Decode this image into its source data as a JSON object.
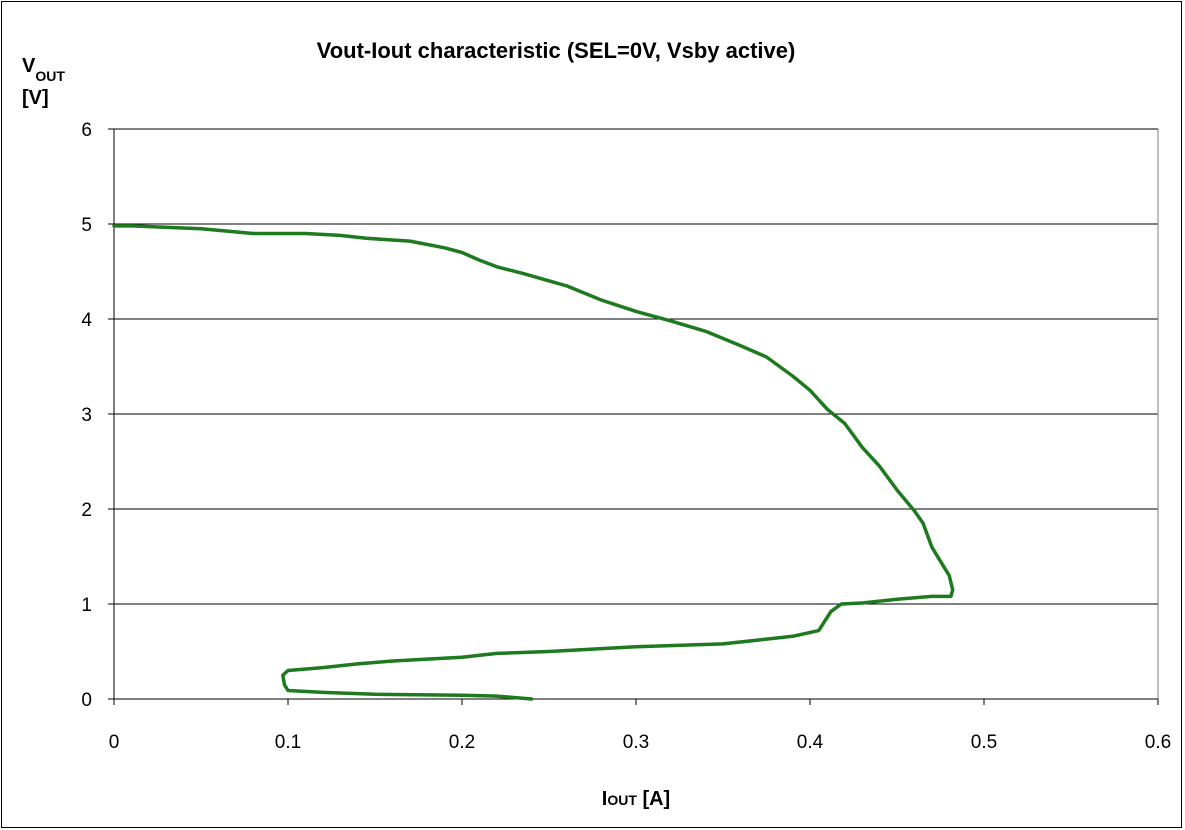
{
  "chart_data": {
    "type": "line",
    "title": "Vout-Iout characteristic (SEL=0V, Vsby active)",
    "ylabel": {
      "main": "V",
      "sub": "OUT",
      "unit": "[V]"
    },
    "xlabel": {
      "main": "I",
      "sub": "OUT",
      "unit": " [A]"
    },
    "xlim": [
      0,
      0.6
    ],
    "ylim": [
      0,
      6
    ],
    "xticks": [
      "0",
      "0.1",
      "0.2",
      "0.3",
      "0.4",
      "0.5",
      "0.6"
    ],
    "yticks": [
      "0",
      "1",
      "2",
      "3",
      "4",
      "5",
      "6"
    ],
    "grid": "horizontal",
    "legend": "none",
    "line_color": "#1e7a1e",
    "series": [
      {
        "x": [
          0,
          0.01,
          0.05,
          0.08,
          0.11,
          0.13,
          0.145,
          0.17,
          0.19,
          0.2,
          0.21,
          0.22,
          0.235,
          0.26,
          0.28,
          0.3,
          0.32,
          0.34,
          0.36,
          0.375,
          0.39,
          0.4,
          0.41,
          0.42,
          0.43,
          0.44,
          0.45,
          0.46,
          0.465,
          0.47,
          0.475,
          0.48,
          0.482,
          0.481,
          0.47,
          0.45,
          0.43,
          0.418,
          0.412,
          0.405,
          0.39,
          0.37,
          0.35,
          0.3,
          0.25,
          0.22,
          0.2,
          0.18,
          0.16,
          0.14,
          0.12,
          0.1,
          0.097,
          0.098,
          0.1,
          0.12,
          0.15,
          0.2,
          0.22,
          0.24
        ],
        "y": [
          4.98,
          4.98,
          4.95,
          4.9,
          4.9,
          4.88,
          4.85,
          4.82,
          4.75,
          4.7,
          4.62,
          4.55,
          4.48,
          4.35,
          4.2,
          4.08,
          3.98,
          3.87,
          3.72,
          3.6,
          3.4,
          3.25,
          3.05,
          2.9,
          2.65,
          2.45,
          2.2,
          1.98,
          1.85,
          1.6,
          1.45,
          1.3,
          1.15,
          1.08,
          1.08,
          1.05,
          1.01,
          1.0,
          0.92,
          0.72,
          0.66,
          0.62,
          0.58,
          0.55,
          0.5,
          0.48,
          0.44,
          0.42,
          0.4,
          0.37,
          0.33,
          0.3,
          0.25,
          0.15,
          0.09,
          0.07,
          0.05,
          0.04,
          0.03,
          0.0
        ]
      }
    ]
  }
}
